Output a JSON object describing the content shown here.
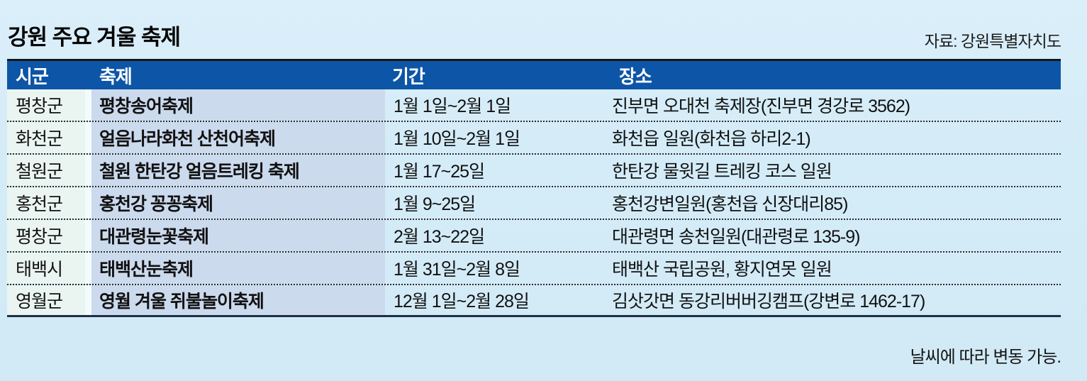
{
  "chart_data": {
    "type": "table",
    "title": "강원 주요 겨울 축제",
    "source": "자료: 강원특별자치도",
    "footnote": "날씨에 따라 변동 가능.",
    "columns": [
      "시군",
      "축제",
      "기간",
      "장소"
    ],
    "rows": [
      [
        "평창군",
        "평창송어축제",
        "1월 1일~2월 1일",
        "진부면 오대천 축제장(진부면 경강로 3562)"
      ],
      [
        "화천군",
        "얼음나라화천 산천어축제",
        "1월 10일~2월 1일",
        "화천읍 일원(화천읍 하리2-1)"
      ],
      [
        "철원군",
        "철원 한탄강 얼음트레킹 축제",
        "1월 17~25일",
        "한탄강 물윗길 트레킹 코스 일원"
      ],
      [
        "홍천군",
        "홍천강 꽁꽁축제",
        "1월 9~25일",
        "홍천강변일원(홍천읍 신장대리85)"
      ],
      [
        "평창군",
        "대관령눈꽃축제",
        "2월 13~22일",
        "대관령면 송천일원(대관령로 135-9)"
      ],
      [
        "태백시",
        "태백산눈축제",
        "1월 31일~2월 8일",
        "태백산 국립공원, 황지연못 일원"
      ],
      [
        "영월군",
        "영월 겨울 쥐불놀이축제",
        "12월 1일~2월 28일",
        "김삿갓면 동강리버버깅캠프(강변로 1462-17)"
      ]
    ],
    "layout": {
      "grid": "dotted-row-separators",
      "legend": "none"
    }
  },
  "colors": {
    "page_bg": "#d4ecf8",
    "header_bg": "#0d55a7",
    "header_text": "#ffffff",
    "sigun_col_bg": "#eaf5f1",
    "festival_col_bg": "#ccdaee",
    "rule_dark": "#171717"
  }
}
